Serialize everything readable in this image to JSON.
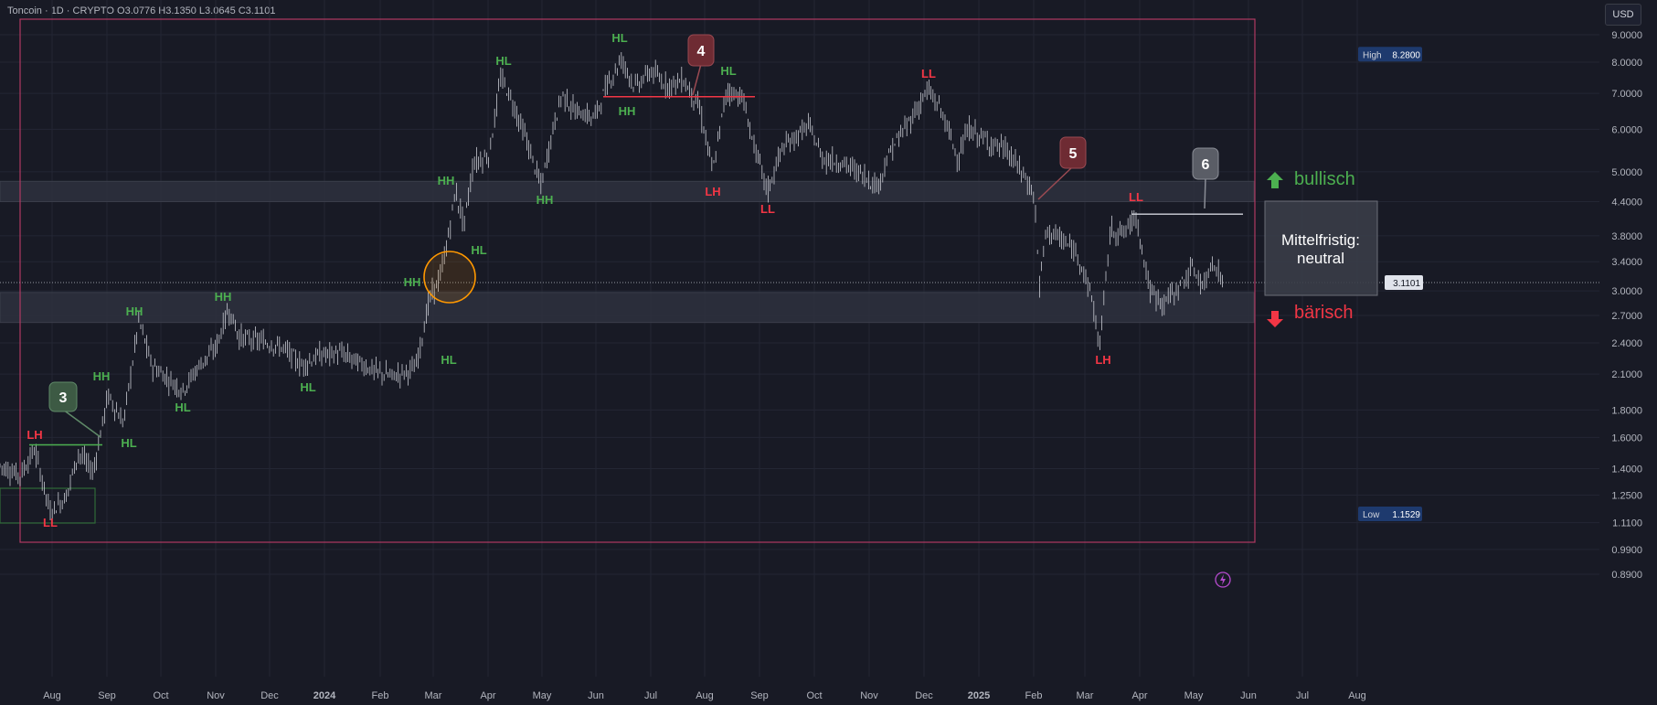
{
  "header": {
    "symbol_info": "Toncoin · 1D · CRYPTO  O3.0776  H3.1350  L3.0645  C3.1101",
    "currency": "USD"
  },
  "chart_data": {
    "type": "candlestick",
    "symbol": "Toncoin",
    "interval": "1D",
    "exchange": "CRYPTO",
    "scale": "log",
    "ohlc_last": {
      "open": 3.0776,
      "high": 3.135,
      "low": 3.0645,
      "close": 3.1101
    },
    "y_ticks": [
      "9.0000",
      "8.0000",
      "7.0000",
      "6.0000",
      "5.0000",
      "4.4000",
      "3.8000",
      "3.4000",
      "3.0000",
      "2.7000",
      "2.4000",
      "2.1000",
      "1.8000",
      "1.6000",
      "1.4000",
      "1.2500",
      "1.1100",
      "0.9900",
      "0.8900"
    ],
    "x_ticks": [
      "Aug",
      "Sep",
      "Oct",
      "Nov",
      "Dec",
      "2024",
      "Feb",
      "Mar",
      "Apr",
      "May",
      "Jun",
      "Jul",
      "Aug",
      "Sep",
      "Oct",
      "Nov",
      "Dec",
      "2025",
      "Feb",
      "Mar",
      "Apr",
      "May",
      "Jun",
      "Jul",
      "Aug"
    ],
    "high_label": "High",
    "high_value": "8.2800",
    "low_label": "Low",
    "low_value": "1.1529",
    "current_price": "3.1101",
    "price_path": [
      [
        0,
        1.42
      ],
      [
        22,
        1.36
      ],
      [
        38,
        1.52
      ],
      [
        55,
        1.16
      ],
      [
        72,
        1.24
      ],
      [
        86,
        1.5
      ],
      [
        102,
        1.38
      ],
      [
        118,
        1.92
      ],
      [
        135,
        1.7
      ],
      [
        152,
        2.65
      ],
      [
        166,
        2.18
      ],
      [
        185,
        2.05
      ],
      [
        200,
        1.96
      ],
      [
        218,
        2.18
      ],
      [
        236,
        2.35
      ],
      [
        250,
        2.78
      ],
      [
        262,
        2.46
      ],
      [
        285,
        2.42
      ],
      [
        310,
        2.35
      ],
      [
        330,
        2.18
      ],
      [
        350,
        2.28
      ],
      [
        372,
        2.3
      ],
      [
        390,
        2.22
      ],
      [
        412,
        2.12
      ],
      [
        430,
        2.08
      ],
      [
        455,
        2.16
      ],
      [
        470,
        2.9
      ],
      [
        482,
        3.2
      ],
      [
        492,
        3.9
      ],
      [
        498,
        4.6
      ],
      [
        508,
        4.0
      ],
      [
        518,
        5.2
      ],
      [
        535,
        5.35
      ],
      [
        548,
        7.5
      ],
      [
        560,
        6.8
      ],
      [
        575,
        5.8
      ],
      [
        592,
        4.7
      ],
      [
        605,
        6.0
      ],
      [
        615,
        7.0
      ],
      [
        628,
        6.5
      ],
      [
        650,
        6.3
      ],
      [
        665,
        7.3
      ],
      [
        680,
        8.1
      ],
      [
        695,
        7.2
      ],
      [
        712,
        7.7
      ],
      [
        730,
        7.25
      ],
      [
        748,
        7.4
      ],
      [
        765,
        6.6
      ],
      [
        780,
        5.0
      ],
      [
        795,
        7.1
      ],
      [
        812,
        6.9
      ],
      [
        825,
        5.6
      ],
      [
        840,
        4.6
      ],
      [
        855,
        5.5
      ],
      [
        870,
        5.8
      ],
      [
        885,
        6.1
      ],
      [
        900,
        5.3
      ],
      [
        920,
        5.2
      ],
      [
        940,
        5.0
      ],
      [
        960,
        4.7
      ],
      [
        975,
        5.5
      ],
      [
        995,
        6.2
      ],
      [
        1015,
        7.1
      ],
      [
        1030,
        6.5
      ],
      [
        1048,
        5.3
      ],
      [
        1060,
        6.0
      ],
      [
        1080,
        5.7
      ],
      [
        1100,
        5.5
      ],
      [
        1118,
        5.0
      ],
      [
        1132,
        4.5
      ],
      [
        1137,
        3.05
      ],
      [
        1145,
        3.9
      ],
      [
        1160,
        3.75
      ],
      [
        1180,
        3.5
      ],
      [
        1195,
        2.9
      ],
      [
        1203,
        2.35
      ],
      [
        1215,
        3.9
      ],
      [
        1230,
        3.85
      ],
      [
        1243,
        4.15
      ],
      [
        1258,
        3.0
      ],
      [
        1272,
        2.85
      ],
      [
        1290,
        3.05
      ],
      [
        1305,
        3.3
      ],
      [
        1318,
        3.05
      ],
      [
        1326,
        3.45
      ],
      [
        1338,
        3.11
      ]
    ],
    "annotations": {
      "swing_labels": [
        {
          "text": "LH",
          "color": "red"
        },
        {
          "text": "LL",
          "color": "red"
        },
        {
          "text": "HH",
          "color": "green"
        },
        {
          "text": "HL",
          "color": "green"
        },
        {
          "text": "HH",
          "color": "green"
        },
        {
          "text": "HL",
          "color": "green"
        },
        {
          "text": "HH",
          "color": "green"
        },
        {
          "text": "HL",
          "color": "green"
        },
        {
          "text": "HL",
          "color": "green"
        },
        {
          "text": "HH",
          "color": "green"
        },
        {
          "text": "HL",
          "color": "green"
        },
        {
          "text": "HH",
          "color": "green"
        },
        {
          "text": "HL",
          "color": "green"
        },
        {
          "text": "HH",
          "color": "green"
        },
        {
          "text": "HL",
          "color": "green"
        },
        {
          "text": "HH",
          "color": "green"
        },
        {
          "text": "HL",
          "color": "green"
        },
        {
          "text": "LH",
          "color": "red"
        },
        {
          "text": "LL",
          "color": "red"
        },
        {
          "text": "LL",
          "color": "red"
        },
        {
          "text": "LH",
          "color": "red"
        },
        {
          "text": "LL",
          "color": "red"
        },
        {
          "text": "LH",
          "color": "red"
        }
      ],
      "markers": [
        "3",
        "4",
        "5",
        "6"
      ],
      "bullish_label": "bullisch",
      "bearish_label": "bärisch",
      "outlook_text": "Mittelfristig: neutral"
    }
  },
  "colors": {
    "background": "#181a25",
    "grid": "#232634",
    "candle": "#c8cad2",
    "axis_text": "#b2b5be",
    "green": "#4caf50",
    "red": "#f23645",
    "frame": "#b03a62",
    "orange": "#ff9800",
    "zone": "#2e313e",
    "marker_green": "#3d5a44",
    "marker_red": "#6e2b33",
    "marker_grey": "#5a5d66",
    "high_badge": "#1e3a6e",
    "low_badge": "#1e3a6e"
  }
}
